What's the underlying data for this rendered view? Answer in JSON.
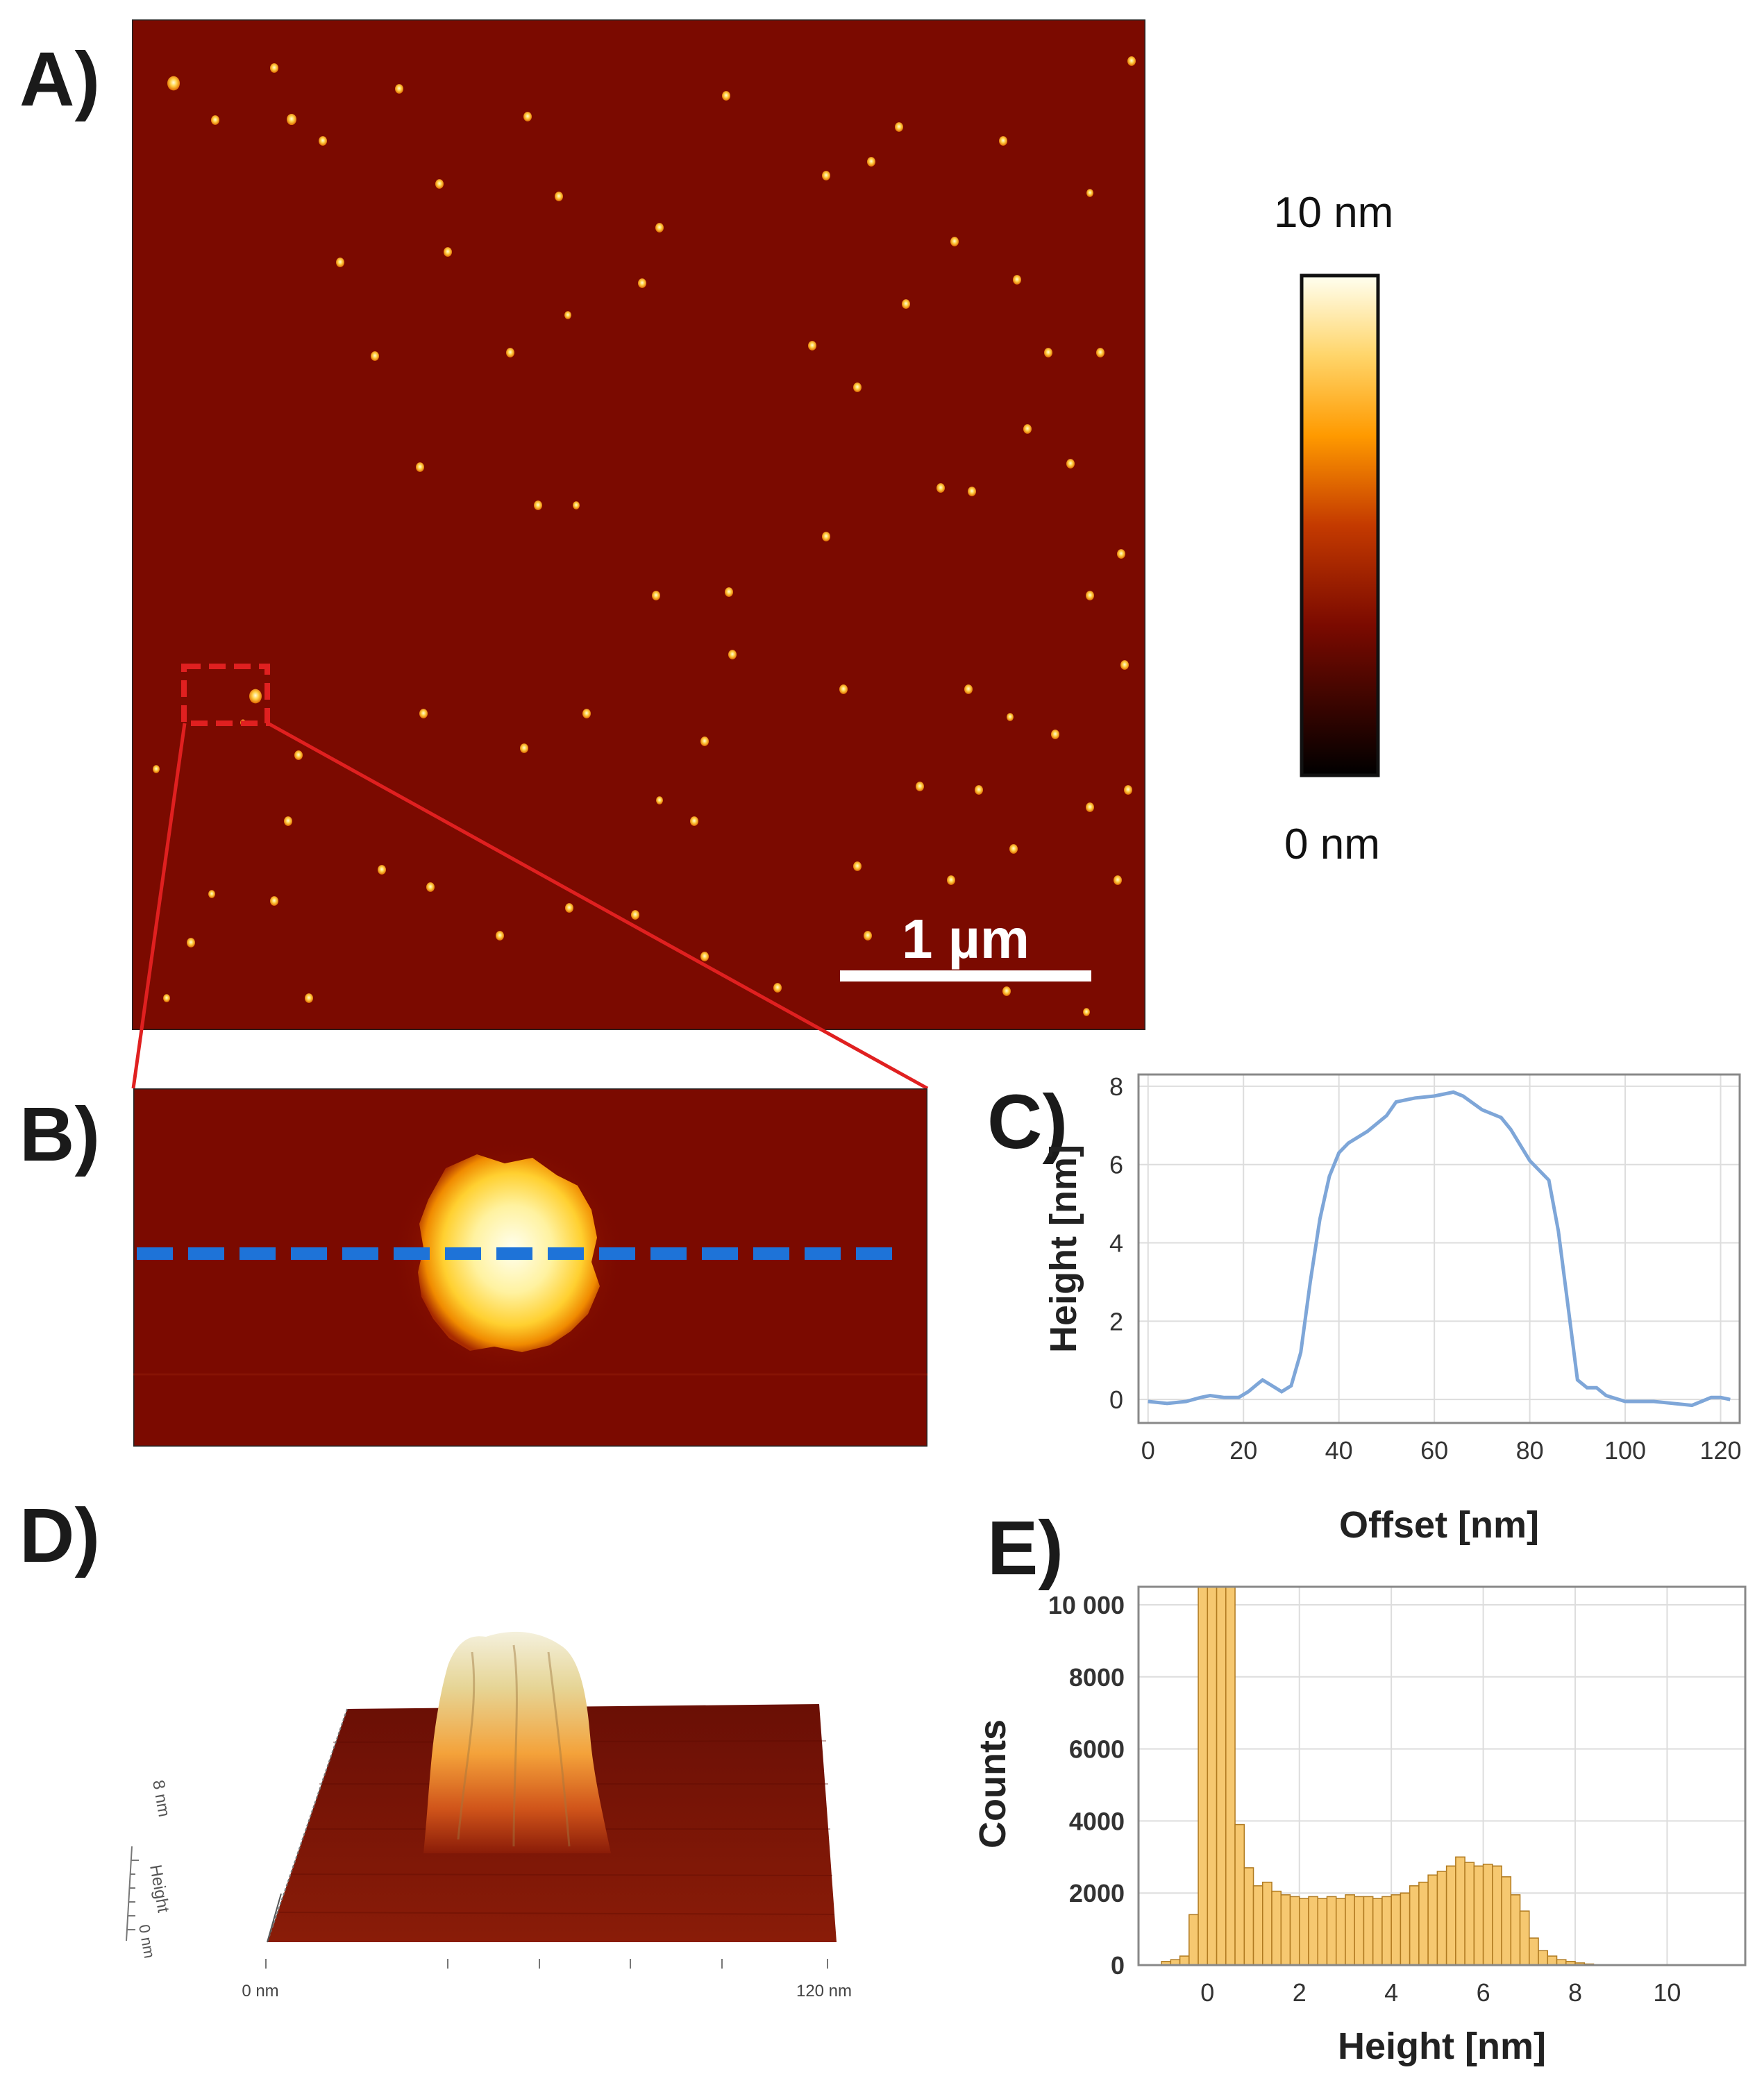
{
  "panels": {
    "a": "A)",
    "b": "B)",
    "c": "C)",
    "d": "D)",
    "e": "E)"
  },
  "colorbar": {
    "max_label": "10 nm",
    "min_label": "0 nm"
  },
  "scale_bar": {
    "label": "1 µm"
  },
  "panel_d": {
    "z_label": "8 nm",
    "z_title": "Height",
    "z_zero": "0 nm",
    "x_start": "0 nm",
    "x_end": "120 nm"
  },
  "colors": {
    "substrate": "#7b0a00",
    "profile_line": "#7ea6d8",
    "hist_bar": "#f6c870",
    "hist_edge": "#b07a20",
    "dashed_line": "#1e73d8",
    "zoom_box": "#e02020"
  },
  "chart_data": [
    {
      "type": "line",
      "title": "",
      "xlabel": "Offset [nm]",
      "ylabel": "Height [nm]",
      "xlim": [
        -2,
        124
      ],
      "ylim": [
        -0.6,
        8.3
      ],
      "xticks": [
        0,
        20,
        40,
        60,
        80,
        100,
        120
      ],
      "yticks": [
        0,
        2,
        4,
        6,
        8
      ],
      "grid": true,
      "series": [
        {
          "name": "profile",
          "x": [
            0,
            4,
            8,
            11,
            13,
            16,
            19,
            21,
            23,
            24,
            26,
            28,
            30,
            32,
            34,
            36,
            38,
            40,
            42,
            46,
            50,
            52,
            56,
            60,
            64,
            66,
            70,
            74,
            76,
            80,
            84,
            86,
            88,
            90,
            92,
            94,
            96,
            100,
            106,
            110,
            114,
            116,
            118,
            120,
            122
          ],
          "y": [
            -0.05,
            -0.1,
            -0.05,
            0.05,
            0.1,
            0.05,
            0.05,
            0.2,
            0.4,
            0.5,
            0.35,
            0.2,
            0.35,
            1.2,
            3.0,
            4.6,
            5.7,
            6.3,
            6.55,
            6.85,
            7.25,
            7.6,
            7.7,
            7.75,
            7.85,
            7.75,
            7.4,
            7.2,
            6.9,
            6.1,
            5.6,
            4.3,
            2.4,
            0.5,
            0.3,
            0.3,
            0.1,
            -0.05,
            -0.05,
            -0.1,
            -0.15,
            -0.05,
            0.05,
            0.05,
            0.0
          ]
        }
      ]
    },
    {
      "type": "bar",
      "title": "",
      "xlabel": "Height [nm]",
      "ylabel": "Counts",
      "xlim": [
        -1.5,
        11.7
      ],
      "ylim": [
        0,
        10500
      ],
      "xticks": [
        0,
        2,
        4,
        6,
        8,
        10
      ],
      "yticks": [
        0,
        2000,
        4000,
        6000,
        8000,
        10000
      ],
      "ytick_labels": [
        "0",
        "2000",
        "4000",
        "6000",
        "8000",
        "10 000"
      ],
      "grid": true,
      "bin_start": -1.0,
      "bin_width": 0.2,
      "values": [
        100,
        150,
        250,
        1400,
        10500,
        10500,
        10500,
        10500,
        3900,
        2700,
        2200,
        2300,
        2050,
        1950,
        1900,
        1850,
        1900,
        1850,
        1900,
        1850,
        1950,
        1900,
        1900,
        1850,
        1900,
        1950,
        2000,
        2200,
        2300,
        2500,
        2600,
        2750,
        3000,
        2850,
        2750,
        2800,
        2750,
        2450,
        1950,
        1500,
        750,
        400,
        250,
        150,
        100,
        60,
        30
      ]
    }
  ]
}
